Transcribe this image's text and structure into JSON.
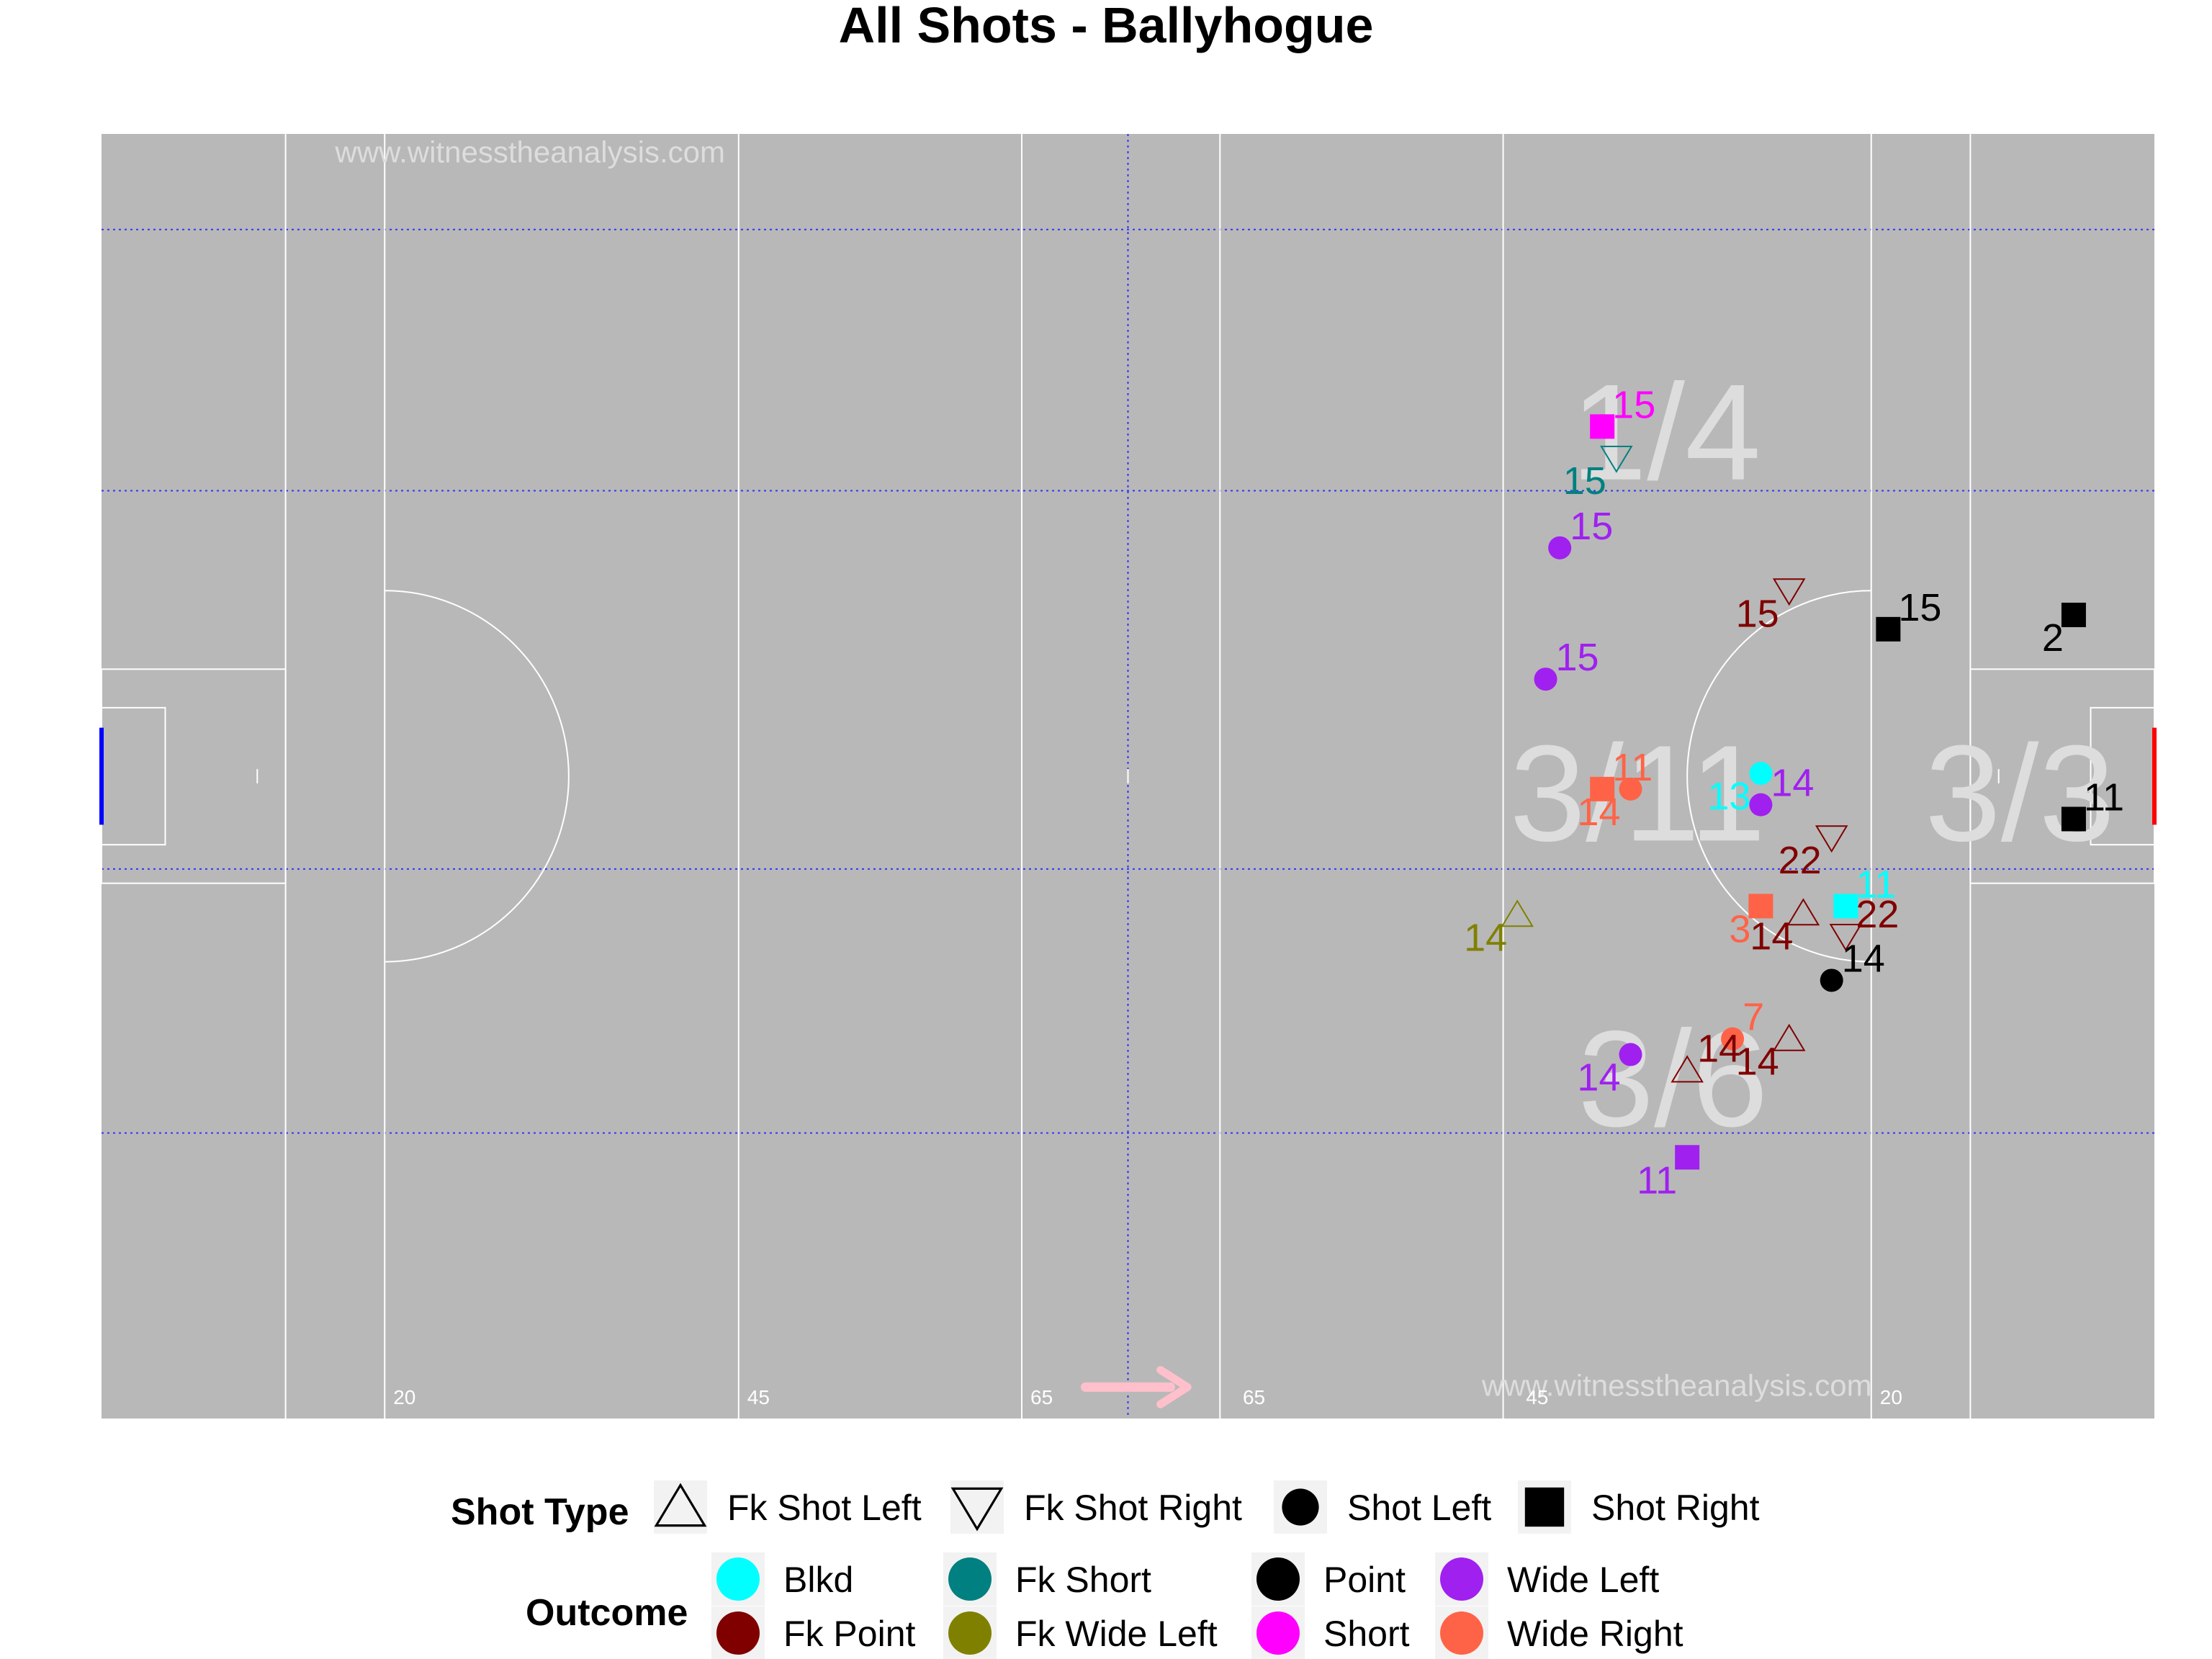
{
  "chart_data": {
    "type": "scatter",
    "title": "All Shots - Ballyhogue",
    "xlabel": "",
    "ylabel": "",
    "xlim": [
      0,
      145
    ],
    "ylim": [
      0,
      90
    ],
    "grid": false,
    "watermark": "www.witnesstheanalysis.com",
    "distance_labels": [
      "20",
      "45",
      "65",
      "65",
      "45",
      "20"
    ],
    "zone_stats": [
      {
        "zone": "right wing",
        "text": "1/4"
      },
      {
        "zone": "centre",
        "text": "3/11"
      },
      {
        "zone": "left wing",
        "text": "3/6"
      },
      {
        "zone": "goal area",
        "text": "3/3"
      }
    ],
    "pitch_color": "#b8b8b8",
    "colors": {
      "Blkd": "#00ffff",
      "Fk Point": "#800000",
      "Fk Short": "#008080",
      "Fk Wide Left": "#808000",
      "Point": "#000000",
      "Short": "#ff00ff",
      "Wide Left": "#a020f0",
      "Wide Right": "#ff6347",
      "home_goal": "#0000ff",
      "away_goal": "#ff0000",
      "direction_arrow": "#ffc0cb"
    },
    "points": [
      {
        "x": 106.0,
        "y": 69.5,
        "player": "15",
        "type": "Shot Right",
        "outcome": "Short"
      },
      {
        "x": 107.0,
        "y": 67.3,
        "player": "15",
        "type": "Fk Shot Right",
        "outcome": "Fk Short"
      },
      {
        "x": 103.0,
        "y": 61.0,
        "player": "15",
        "type": "Shot Left",
        "outcome": "Wide Left"
      },
      {
        "x": 119.2,
        "y": 58.0,
        "player": "15",
        "type": "Fk Shot Right",
        "outcome": "Fk Point"
      },
      {
        "x": 126.2,
        "y": 55.3,
        "player": "15",
        "type": "Shot Right",
        "outcome": "Point"
      },
      {
        "x": 139.3,
        "y": 56.3,
        "player": "2",
        "type": "Shot Right",
        "outcome": "Point"
      },
      {
        "x": 102.0,
        "y": 51.8,
        "player": "15",
        "type": "Shot Left",
        "outcome": "Wide Left"
      },
      {
        "x": 117.2,
        "y": 45.2,
        "player": "13",
        "type": "Shot Left",
        "outcome": "Blkd"
      },
      {
        "x": 106.0,
        "y": 44.1,
        "player": "11",
        "type": "Shot Right",
        "outcome": "Wide Right"
      },
      {
        "x": 108.0,
        "y": 44.1,
        "player": "14",
        "type": "Shot Left",
        "outcome": "Wide Right"
      },
      {
        "x": 117.2,
        "y": 43.0,
        "player": "14",
        "type": "Shot Left",
        "outcome": "Wide Left"
      },
      {
        "x": 122.2,
        "y": 40.7,
        "player": "22",
        "type": "Fk Shot Right",
        "outcome": "Fk Point"
      },
      {
        "x": 139.3,
        "y": 42.0,
        "player": "11",
        "type": "Shot Right",
        "outcome": "Point"
      },
      {
        "x": 117.2,
        "y": 35.9,
        "player": "3",
        "type": "Shot Right",
        "outcome": "Wide Right"
      },
      {
        "x": 123.2,
        "y": 35.9,
        "player": "11",
        "type": "Shot Right",
        "outcome": "Blkd"
      },
      {
        "x": 120.2,
        "y": 35.4,
        "player": "14",
        "type": "Fk Shot Left",
        "outcome": "Fk Point"
      },
      {
        "x": 123.2,
        "y": 33.8,
        "player": "22",
        "type": "Fk Shot Right",
        "outcome": "Fk Point"
      },
      {
        "x": 100.0,
        "y": 35.3,
        "player": "14",
        "type": "Fk Shot Left",
        "outcome": "Fk Wide Left"
      },
      {
        "x": 122.2,
        "y": 30.7,
        "player": "14",
        "type": "Shot Left",
        "outcome": "Point"
      },
      {
        "x": 108.0,
        "y": 25.5,
        "player": "14",
        "type": "Shot Left",
        "outcome": "Wide Left"
      },
      {
        "x": 115.2,
        "y": 26.6,
        "player": "7",
        "type": "Shot Left",
        "outcome": "Wide Right"
      },
      {
        "x": 119.2,
        "y": 26.6,
        "player": "14",
        "type": "Fk Shot Left",
        "outcome": "Fk Point"
      },
      {
        "x": 112.0,
        "y": 24.4,
        "player": "14",
        "type": "Fk Shot Left",
        "outcome": "Fk Point"
      },
      {
        "x": 112.0,
        "y": 18.3,
        "player": "11",
        "type": "Shot Right",
        "outcome": "Wide Left"
      }
    ]
  },
  "legend": {
    "shot_type_title": "Shot Type",
    "outcome_title": "Outcome",
    "shot_types": [
      "Fk Shot Left",
      "Fk Shot Right",
      "Shot Left",
      "Shot Right"
    ],
    "outcomes": [
      "Blkd",
      "Fk Point",
      "Fk Short",
      "Fk Wide Left",
      "Point",
      "Short",
      "Wide Left",
      "Wide Right"
    ]
  }
}
